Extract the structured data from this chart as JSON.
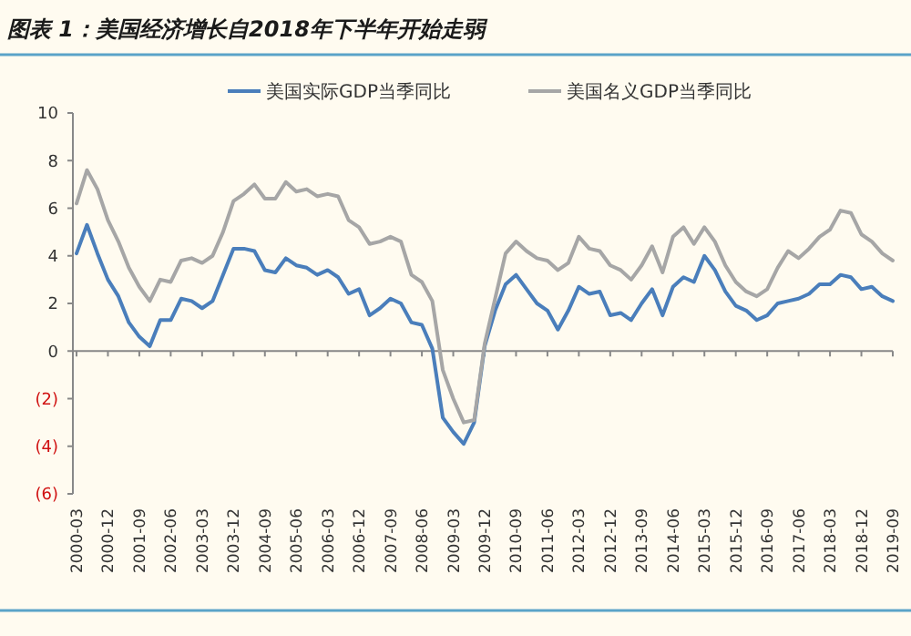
{
  "chart_data": {
    "type": "line",
    "title": "图表 1：美国经济增长自2018年下半年开始走弱",
    "categories": [
      "2000-03",
      null,
      null,
      "2000-12",
      null,
      null,
      "2001-09",
      null,
      null,
      "2002-06",
      null,
      null,
      "2003-03",
      null,
      null,
      "2003-12",
      null,
      null,
      "2004-09",
      null,
      null,
      "2005-06",
      null,
      null,
      "2006-03",
      null,
      null,
      "2006-12",
      null,
      null,
      "2007-09",
      null,
      null,
      "2008-06",
      null,
      null,
      "2009-03",
      null,
      null,
      "2009-12",
      null,
      null,
      "2010-09",
      null,
      null,
      "2011-06",
      null,
      null,
      "2012-03",
      null,
      null,
      "2012-12",
      null,
      null,
      "2013-09",
      null,
      null,
      "2014-06",
      null,
      null,
      "2015-03",
      null,
      null,
      "2015-12",
      null,
      null,
      "2016-09",
      null,
      null,
      "2017-06",
      null,
      null,
      "2018-03",
      null,
      null,
      "2018-12",
      null,
      null,
      "2019-09"
    ],
    "series": [
      {
        "name": "美国实际GDP当季同比",
        "color": "#4a7ebb",
        "values": [
          4.1,
          5.3,
          4.1,
          3.0,
          2.3,
          1.2,
          0.6,
          0.2,
          1.3,
          1.3,
          2.2,
          2.1,
          1.8,
          2.1,
          3.2,
          4.3,
          4.3,
          4.2,
          3.4,
          3.3,
          3.9,
          3.6,
          3.5,
          3.2,
          3.4,
          3.1,
          2.4,
          2.6,
          1.5,
          1.8,
          2.2,
          2.0,
          1.2,
          1.1,
          0.1,
          -2.8,
          -3.4,
          -3.9,
          -3.0,
          0.2,
          1.7,
          2.8,
          3.2,
          2.6,
          2.0,
          1.7,
          0.9,
          1.7,
          2.7,
          2.4,
          2.5,
          1.5,
          1.6,
          1.3,
          2.0,
          2.6,
          1.5,
          2.7,
          3.1,
          2.9,
          4.0,
          3.4,
          2.5,
          1.9,
          1.7,
          1.3,
          1.5,
          2.0,
          2.1,
          2.2,
          2.4,
          2.8,
          2.8,
          3.2,
          3.1,
          2.6,
          2.7,
          2.3,
          2.1
        ]
      },
      {
        "name": "美国名义GDP当季同比",
        "color": "#a6a6a6",
        "values": [
          6.2,
          7.6,
          6.8,
          5.5,
          4.6,
          3.5,
          2.7,
          2.1,
          3.0,
          2.9,
          3.8,
          3.9,
          3.7,
          4.0,
          5.0,
          6.3,
          6.6,
          7.0,
          6.4,
          6.4,
          7.1,
          6.7,
          6.8,
          6.5,
          6.6,
          6.5,
          5.5,
          5.2,
          4.5,
          4.6,
          4.8,
          4.6,
          3.2,
          2.9,
          2.1,
          -0.8,
          -2.0,
          -3.0,
          -2.9,
          0.3,
          2.2,
          4.1,
          4.6,
          4.2,
          3.9,
          3.8,
          3.4,
          3.7,
          4.8,
          4.3,
          4.2,
          3.6,
          3.4,
          3.0,
          3.6,
          4.4,
          3.3,
          4.8,
          5.2,
          4.5,
          5.2,
          4.6,
          3.6,
          2.9,
          2.5,
          2.3,
          2.6,
          3.5,
          4.2,
          3.9,
          4.3,
          4.8,
          5.1,
          5.9,
          5.8,
          4.9,
          4.6,
          4.1,
          3.8
        ]
      }
    ],
    "ylim": [
      -6,
      10
    ],
    "yticks": [
      {
        "value": -6,
        "label": "(6)"
      },
      {
        "value": -4,
        "label": "(4)"
      },
      {
        "value": -2,
        "label": "(2)"
      },
      0,
      2,
      4,
      6,
      8,
      10
    ],
    "legend": "top",
    "marker": "none",
    "line_style": "solid"
  }
}
